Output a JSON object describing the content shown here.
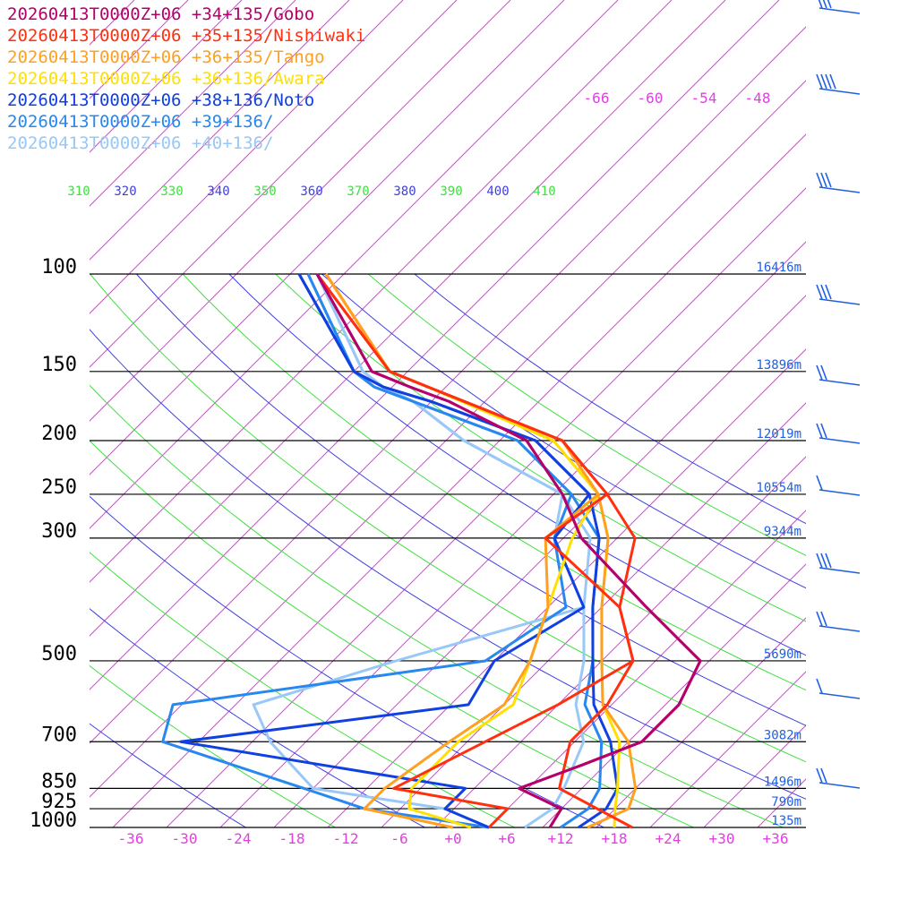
{
  "chart_data": {
    "type": "line",
    "title": "",
    "pressure_levels": [
      100,
      150,
      200,
      250,
      300,
      500,
      700,
      850,
      925,
      1000
    ],
    "height_labels": [
      {
        "p": 100,
        "label": "16416m"
      },
      {
        "p": 150,
        "label": "13896m"
      },
      {
        "p": 200,
        "label": "12019m"
      },
      {
        "p": 250,
        "label": "10554m"
      },
      {
        "p": 300,
        "label": "9344m"
      },
      {
        "p": 500,
        "label": "5690m"
      },
      {
        "p": 700,
        "label": "3082m"
      },
      {
        "p": 850,
        "label": "1496m"
      },
      {
        "p": 925,
        "label": "790m"
      },
      {
        "p": 1000,
        "label": "135m"
      }
    ],
    "x_tick_labels": [
      "-36",
      "-30",
      "-24",
      "-18",
      "-12",
      "-6",
      "+0",
      "+6",
      "+12",
      "+18",
      "+24",
      "+30",
      "+36"
    ],
    "isotherm_labels": [
      "-66",
      "-60",
      "-54",
      "-48"
    ],
    "theta_labels": [
      "310",
      "320",
      "330",
      "340",
      "350",
      "360",
      "370",
      "380",
      "390",
      "400",
      "410"
    ],
    "series": [
      {
        "name": "20260413T0000Z+06 +34+135/Gobo",
        "color": "#b5006b",
        "temperature": [
          [
            1000,
            10.8
          ],
          [
            925,
            10
          ],
          [
            850,
            3
          ],
          [
            770,
            7.5
          ],
          [
            700,
            11.5
          ],
          [
            600,
            11.5
          ],
          [
            500,
            9
          ],
          [
            400,
            -3
          ],
          [
            300,
            -18
          ],
          [
            250,
            -25
          ],
          [
            200,
            -35
          ],
          [
            170,
            -48
          ],
          [
            160,
            -54
          ],
          [
            150,
            -60
          ],
          [
            100,
            -77
          ]
        ],
        "dewpoint": [
          [
            1000,
            10.8
          ],
          [
            925,
            10
          ],
          [
            850,
            3
          ],
          [
            770,
            7.5
          ],
          [
            700,
            11.5
          ],
          [
            600,
            11.5
          ],
          [
            500,
            9
          ],
          [
            400,
            -3
          ],
          [
            300,
            -18
          ],
          [
            250,
            -25
          ],
          [
            200,
            -35
          ],
          [
            170,
            -48
          ],
          [
            160,
            -54
          ],
          [
            150,
            -60
          ],
          [
            100,
            -77
          ]
        ]
      },
      {
        "name": "20260413T0000Z+06 +35+135/Nishiwaki",
        "color": "#ff3010",
        "temperature": [
          [
            1000,
            20
          ],
          [
            925,
            14
          ],
          [
            850,
            7.5
          ],
          [
            700,
            3.5
          ],
          [
            600,
            3.5
          ],
          [
            500,
            1.5
          ],
          [
            400,
            -6
          ],
          [
            300,
            -12
          ],
          [
            250,
            -20
          ],
          [
            200,
            -31
          ],
          [
            160,
            -52
          ],
          [
            150,
            -58
          ],
          [
            100,
            -77
          ]
        ],
        "dewpoint": [
          [
            1000,
            4
          ],
          [
            925,
            4
          ],
          [
            850,
            -11
          ],
          [
            700,
            -6
          ],
          [
            600,
            -2
          ],
          [
            500,
            1.5
          ],
          [
            400,
            -6
          ],
          [
            300,
            -22
          ],
          [
            250,
            -20
          ],
          [
            200,
            -31
          ],
          [
            160,
            -52
          ],
          [
            150,
            -58
          ],
          [
            100,
            -77
          ]
        ]
      },
      {
        "name": "20260413T0000Z+06 +36+135/Tango",
        "color": "#ffa020",
        "temperature": [
          [
            1000,
            15
          ],
          [
            925,
            17.5
          ],
          [
            850,
            16
          ],
          [
            700,
            10
          ],
          [
            600,
            3
          ],
          [
            500,
            -2
          ],
          [
            400,
            -8
          ],
          [
            300,
            -15
          ],
          [
            250,
            -21
          ],
          [
            200,
            -31
          ],
          [
            160,
            -52
          ],
          [
            150,
            -58
          ],
          [
            100,
            -76
          ]
        ],
        "dewpoint": [
          [
            1000,
            0
          ],
          [
            925,
            -12
          ],
          [
            850,
            -12
          ],
          [
            700,
            -10
          ],
          [
            600,
            -8
          ],
          [
            500,
            -10
          ],
          [
            400,
            -14
          ],
          [
            300,
            -22
          ],
          [
            250,
            -21
          ],
          [
            200,
            -31
          ],
          [
            160,
            -52
          ],
          [
            150,
            -58
          ],
          [
            100,
            -76
          ]
        ]
      },
      {
        "name": "20260413T0000Z+06 +36+136/Awara",
        "color": "#ffe000",
        "temperature": [
          [
            1000,
            18
          ],
          [
            925,
            16
          ],
          [
            850,
            14
          ],
          [
            700,
            9
          ],
          [
            600,
            3
          ],
          [
            500,
            -2
          ],
          [
            400,
            -8
          ],
          [
            300,
            -15
          ],
          [
            250,
            -21
          ],
          [
            200,
            -32
          ],
          [
            160,
            -52
          ],
          [
            150,
            -58
          ],
          [
            100,
            -76
          ]
        ],
        "dewpoint": [
          [
            1000,
            2
          ],
          [
            925,
            -7
          ],
          [
            850,
            -9
          ],
          [
            700,
            -9
          ],
          [
            600,
            -7
          ],
          [
            500,
            -10
          ],
          [
            400,
            -14
          ],
          [
            300,
            -19
          ],
          [
            250,
            -21
          ],
          [
            200,
            -32
          ],
          [
            160,
            -52
          ],
          [
            150,
            -58
          ],
          [
            100,
            -76
          ]
        ]
      },
      {
        "name": "20260413T0000Z+06 +38+136/Noto",
        "color": "#1040e0",
        "temperature": [
          [
            1000,
            14
          ],
          [
            925,
            15
          ],
          [
            850,
            14
          ],
          [
            700,
            8
          ],
          [
            600,
            2
          ],
          [
            500,
            -3
          ],
          [
            400,
            -9
          ],
          [
            300,
            -16
          ],
          [
            250,
            -22
          ],
          [
            200,
            -34
          ],
          [
            170,
            -50
          ],
          [
            160,
            -57
          ],
          [
            150,
            -62
          ],
          [
            100,
            -79
          ]
        ],
        "dewpoint": [
          [
            1000,
            4
          ],
          [
            925,
            -3
          ],
          [
            850,
            -3
          ],
          [
            700,
            -40
          ],
          [
            600,
            -12
          ],
          [
            500,
            -14
          ],
          [
            400,
            -10
          ],
          [
            300,
            -21
          ],
          [
            250,
            -22
          ],
          [
            200,
            -34
          ],
          [
            170,
            -50
          ],
          [
            160,
            -57
          ],
          [
            150,
            -62
          ],
          [
            100,
            -79
          ]
        ]
      },
      {
        "name": "20260413T0000Z+06 +39+136/",
        "color": "#2888f0",
        "temperature": [
          [
            1000,
            12
          ],
          [
            925,
            13
          ],
          [
            850,
            12
          ],
          [
            700,
            7
          ],
          [
            600,
            1
          ],
          [
            500,
            -3
          ],
          [
            400,
            -9
          ],
          [
            300,
            -16
          ],
          [
            250,
            -24
          ],
          [
            200,
            -36
          ],
          [
            170,
            -52
          ],
          [
            160,
            -58
          ],
          [
            150,
            -62
          ],
          [
            100,
            -78
          ]
        ],
        "dewpoint": [
          [
            1000,
            4
          ],
          [
            925,
            -12
          ],
          [
            850,
            -21
          ],
          [
            700,
            -42
          ],
          [
            600,
            -45
          ],
          [
            500,
            -15
          ],
          [
            400,
            -12
          ],
          [
            300,
            -21
          ],
          [
            250,
            -24
          ],
          [
            200,
            -36
          ],
          [
            170,
            -52
          ],
          [
            160,
            -58
          ],
          [
            150,
            -62
          ],
          [
            100,
            -78
          ]
        ]
      },
      {
        "name": "20260413T0000Z+06 +40+136/",
        "color": "#98c8f8",
        "temperature": [
          [
            1000,
            8
          ],
          [
            925,
            9
          ],
          [
            850,
            8
          ],
          [
            700,
            5
          ],
          [
            600,
            0
          ],
          [
            500,
            -4
          ],
          [
            400,
            -10
          ],
          [
            300,
            -17
          ],
          [
            250,
            -25
          ],
          [
            200,
            -42
          ],
          [
            170,
            -52
          ],
          [
            160,
            -57
          ],
          [
            150,
            -61
          ],
          [
            100,
            -77
          ]
        ],
        "dewpoint": [
          [
            1000,
            4
          ],
          [
            925,
            -3
          ],
          [
            850,
            -20
          ],
          [
            700,
            -30
          ],
          [
            600,
            -36
          ],
          [
            500,
            -25
          ],
          [
            400,
            -10
          ],
          [
            300,
            -21
          ],
          [
            250,
            -25
          ],
          [
            200,
            -42
          ],
          [
            170,
            -52
          ],
          [
            160,
            -57
          ],
          [
            150,
            -61
          ],
          [
            100,
            -77
          ]
        ]
      }
    ]
  }
}
